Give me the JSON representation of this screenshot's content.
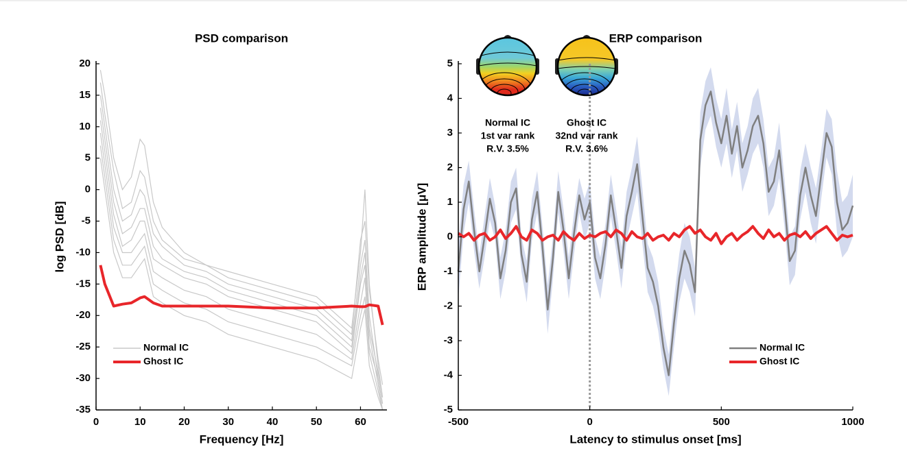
{
  "chart_data": [
    {
      "type": "line",
      "title": "PSD comparison",
      "xlabel": "Frequency [Hz]",
      "ylabel": "log PSD [dB]",
      "x": [
        1,
        2,
        4,
        6,
        8,
        10,
        11,
        13,
        15,
        20,
        25,
        30,
        40,
        50,
        58,
        60,
        61,
        62,
        64,
        65
      ],
      "series": [
        {
          "name": "Normal IC",
          "color": "#c8c8c8",
          "lines": [
            [
              19,
              15,
              5,
              0,
              2,
              8,
              7,
              -2,
              -6,
              -10,
              -12,
              -13,
              -15,
              -17,
              -22,
              -10,
              0,
              -15,
              -28,
              -33
            ],
            [
              17,
              12,
              3,
              -3,
              -2,
              3,
              2,
              -5,
              -8,
              -11,
              -12,
              -14,
              -16,
              -18,
              -23,
              -8,
              -5,
              -16,
              -27,
              -31
            ],
            [
              15,
              10,
              0,
              -5,
              -4,
              0,
              -1,
              -7,
              -9,
              -12,
              -13,
              -15,
              -17,
              -19,
              -24,
              -12,
              -8,
              -20,
              -30,
              -34
            ],
            [
              13,
              8,
              -2,
              -7,
              -6,
              -3,
              -3,
              -9,
              -11,
              -13,
              -14,
              -16,
              -18,
              -20,
              -25,
              -14,
              -10,
              -22,
              -29,
              -33
            ],
            [
              11,
              6,
              -4,
              -9,
              -8,
              -5,
              -5,
              -11,
              -12,
              -14,
              -15,
              -17,
              -19,
              -21,
              -26,
              -15,
              -12,
              -23,
              -31,
              -35
            ],
            [
              9,
              4,
              -6,
              -10,
              -10,
              -8,
              -7,
              -13,
              -14,
              -16,
              -17,
              -19,
              -21,
              -23,
              -27,
              -18,
              -14,
              -25,
              -30,
              -34
            ],
            [
              7,
              2,
              -8,
              -12,
              -12,
              -10,
              -9,
              -15,
              -16,
              -18,
              -19,
              -21,
              -23,
              -25,
              -28,
              -20,
              -17,
              -26,
              -32,
              -35
            ],
            [
              5,
              0,
              -10,
              -14,
              -14,
              -12,
              -11,
              -17,
              -18,
              -20,
              -21,
              -23,
              -25,
              -27,
              -30,
              -22,
              -19,
              -28,
              -33,
              -35
            ]
          ]
        },
        {
          "name": "Ghost IC",
          "color": "#e8262a",
          "values": [
            -12,
            -15,
            -18.5,
            -18.2,
            -18,
            -17.2,
            -17,
            -18,
            -18.5,
            -18.5,
            -18.5,
            -18.5,
            -18.8,
            -18.8,
            -18.5,
            -18.6,
            -18.6,
            -18.3,
            -18.5,
            -21.5
          ]
        }
      ],
      "xlim": [
        0,
        66
      ],
      "ylim": [
        -35,
        20
      ],
      "xticks": [
        0,
        10,
        20,
        30,
        40,
        50,
        60
      ],
      "yticks": [
        -35,
        -30,
        -25,
        -20,
        -15,
        -10,
        -5,
        0,
        5,
        10,
        15,
        20
      ],
      "legend": "lower left"
    },
    {
      "type": "line",
      "title": "ERP comparison",
      "xlabel": "Latency to stimulus onset [ms]",
      "ylabel": "ERP amplitude [μV]",
      "x": [
        -500,
        -480,
        -460,
        -440,
        -420,
        -400,
        -380,
        -360,
        -340,
        -320,
        -300,
        -280,
        -260,
        -240,
        -220,
        -200,
        -180,
        -160,
        -140,
        -120,
        -100,
        -80,
        -60,
        -40,
        -20,
        0,
        20,
        40,
        60,
        80,
        100,
        120,
        140,
        160,
        180,
        200,
        220,
        240,
        260,
        280,
        300,
        320,
        340,
        360,
        380,
        400,
        420,
        440,
        460,
        480,
        500,
        520,
        540,
        560,
        580,
        600,
        620,
        640,
        660,
        680,
        700,
        720,
        740,
        760,
        780,
        800,
        820,
        840,
        860,
        880,
        900,
        920,
        940,
        960,
        980,
        1000
      ],
      "series": [
        {
          "name": "Normal IC",
          "color": "#7f7f7f",
          "band_color": "#d3daee",
          "values": [
            -1.0,
            0.8,
            1.6,
            0.2,
            -1.0,
            0.0,
            1.1,
            0.4,
            -1.2,
            -0.4,
            1.0,
            1.4,
            -0.5,
            -1.3,
            0.5,
            1.3,
            -0.3,
            -2.1,
            -0.6,
            1.3,
            0.2,
            -1.2,
            0.1,
            1.2,
            0.5,
            1.0,
            -0.6,
            -1.2,
            -0.2,
            1.2,
            0.2,
            -0.9,
            0.6,
            1.3,
            2.1,
            0.6,
            -0.9,
            -1.3,
            -2.0,
            -3.2,
            -4.0,
            -2.5,
            -1.2,
            -0.4,
            -0.8,
            -1.6,
            2.8,
            3.8,
            4.2,
            3.3,
            2.7,
            3.5,
            2.4,
            3.2,
            2.0,
            2.5,
            3.2,
            3.5,
            2.7,
            1.3,
            1.6,
            2.5,
            1.0,
            -0.7,
            -0.4,
            1.2,
            2.0,
            1.2,
            0.6,
            1.8,
            3.0,
            2.6,
            1.0,
            0.2,
            0.4,
            0.9
          ],
          "error": [
            0.8,
            0.7,
            0.6,
            0.6,
            0.5,
            0.6,
            0.6,
            0.5,
            0.6,
            0.6,
            0.6,
            0.6,
            0.5,
            0.6,
            0.6,
            0.6,
            0.6,
            0.7,
            0.6,
            0.6,
            0.6,
            0.6,
            0.6,
            0.5,
            0.6,
            0.6,
            0.6,
            0.6,
            0.6,
            0.6,
            0.6,
            0.6,
            0.7,
            0.7,
            0.8,
            0.8,
            0.7,
            0.7,
            0.7,
            0.6,
            0.6,
            0.7,
            0.7,
            0.8,
            0.8,
            0.7,
            0.8,
            0.7,
            0.7,
            0.7,
            0.7,
            0.8,
            0.7,
            0.7,
            0.7,
            0.7,
            0.8,
            0.8,
            0.7,
            0.7,
            0.7,
            0.8,
            0.7,
            0.7,
            0.7,
            0.7,
            0.7,
            0.8,
            0.8,
            0.7,
            0.7,
            0.8,
            0.9,
            0.8,
            0.8,
            0.9
          ]
        },
        {
          "name": "Ghost IC",
          "color": "#e8262a",
          "values": [
            0.1,
            0.0,
            0.1,
            -0.1,
            0.05,
            0.1,
            -0.1,
            0.0,
            0.2,
            -0.05,
            0.1,
            0.3,
            0.0,
            -0.1,
            0.2,
            0.1,
            -0.1,
            0.0,
            0.05,
            -0.1,
            0.15,
            0.0,
            -0.1,
            0.1,
            -0.05,
            0.05,
            0.0,
            0.1,
            0.15,
            0.0,
            0.2,
            0.1,
            -0.1,
            0.15,
            0.0,
            -0.05,
            0.1,
            -0.1,
            0.0,
            0.05,
            -0.1,
            0.1,
            0.0,
            0.2,
            0.3,
            0.1,
            0.2,
            0.0,
            -0.1,
            0.1,
            -0.2,
            0.0,
            0.1,
            -0.1,
            0.05,
            0.15,
            0.3,
            0.1,
            -0.05,
            0.2,
            0.0,
            0.1,
            -0.1,
            0.05,
            0.1,
            0.0,
            0.15,
            -0.05,
            0.1,
            0.2,
            0.3,
            0.1,
            -0.1,
            0.05,
            0.0,
            0.05
          ]
        }
      ],
      "xlim": [
        -500,
        1000
      ],
      "ylim": [
        -5,
        5
      ],
      "xticks": [
        -500,
        0,
        500,
        1000
      ],
      "yticks": [
        -5,
        -4,
        -3,
        -2,
        -1,
        0,
        1,
        2,
        3,
        4,
        5
      ],
      "vline": 0,
      "legend": "lower right",
      "annotations": [
        [
          "Normal IC",
          "1st var rank",
          "R.V. 3.5%"
        ],
        [
          "Ghost IC",
          "32nd var rank",
          "R.V. 3.6%"
        ]
      ]
    }
  ]
}
